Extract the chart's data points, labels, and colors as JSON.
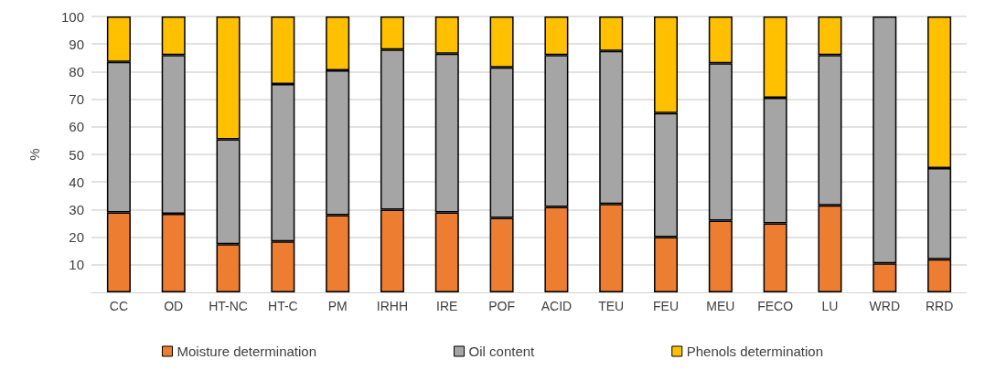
{
  "chart_data": {
    "type": "bar",
    "stacked": true,
    "ylabel": "%",
    "categories": [
      "CC",
      "OD",
      "HT-NC",
      "HT-C",
      "PM",
      "IRHH",
      "IRE",
      "POF",
      "ACID",
      "TEU",
      "FEU",
      "MEU",
      "FECO",
      "LU",
      "WRD",
      "RRD"
    ],
    "series": [
      {
        "name": "Moisture determination",
        "color": "#ed7d31",
        "values": [
          29,
          28.5,
          17.5,
          18.5,
          28,
          30,
          29,
          27,
          31,
          32,
          20,
          26,
          25,
          31.5,
          10.5,
          12
        ]
      },
      {
        "name": "Oil content",
        "color": "#a5a5a5",
        "values": [
          54.5,
          57.5,
          38,
          57,
          52.5,
          58,
          57.5,
          54.5,
          55,
          55.5,
          45,
          57,
          45.5,
          54.5,
          89.5,
          33
        ]
      },
      {
        "name": "Phenols determination",
        "color": "#ffc000",
        "values": [
          16.5,
          14,
          44.5,
          24.5,
          19.5,
          12,
          13.5,
          18.5,
          14,
          12.5,
          35,
          17,
          29.5,
          14,
          null,
          55
        ]
      }
    ],
    "ylim": [
      0,
      100
    ],
    "yticks": [
      10,
      20,
      30,
      40,
      50,
      60,
      70,
      80,
      90,
      100
    ],
    "grid": "y",
    "legend": "bottom"
  }
}
